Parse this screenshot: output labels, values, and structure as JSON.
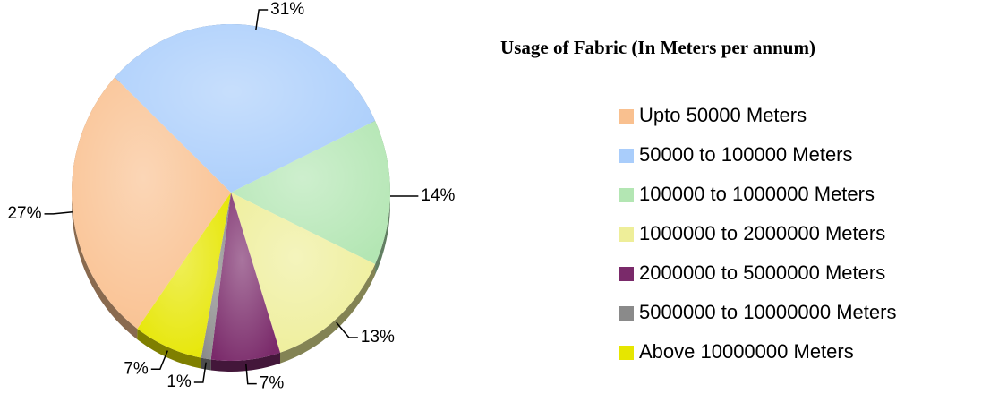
{
  "chart_data": {
    "type": "pie",
    "title": "Usage of Fabric (In Meters per annum)",
    "categories": [
      "Upto 50000 Meters",
      "50000 to 100000 Meters",
      "100000 to 1000000 Meters",
      "1000000 to 2000000 Meters",
      "2000000 to 5000000 Meters",
      "5000000 to 10000000 Meters",
      "Above 10000000 Meters"
    ],
    "values": [
      27,
      31,
      14,
      13,
      7,
      1,
      7
    ],
    "value_labels": [
      "27%",
      "31%",
      "14%",
      "13%",
      "7%",
      "1%",
      "7%"
    ],
    "colors": [
      "#f9c08f",
      "#a9cdfb",
      "#b3e6b3",
      "#eeee99",
      "#7a2a6a",
      "#8a8a8a",
      "#e6e600"
    ],
    "legend": "right"
  }
}
